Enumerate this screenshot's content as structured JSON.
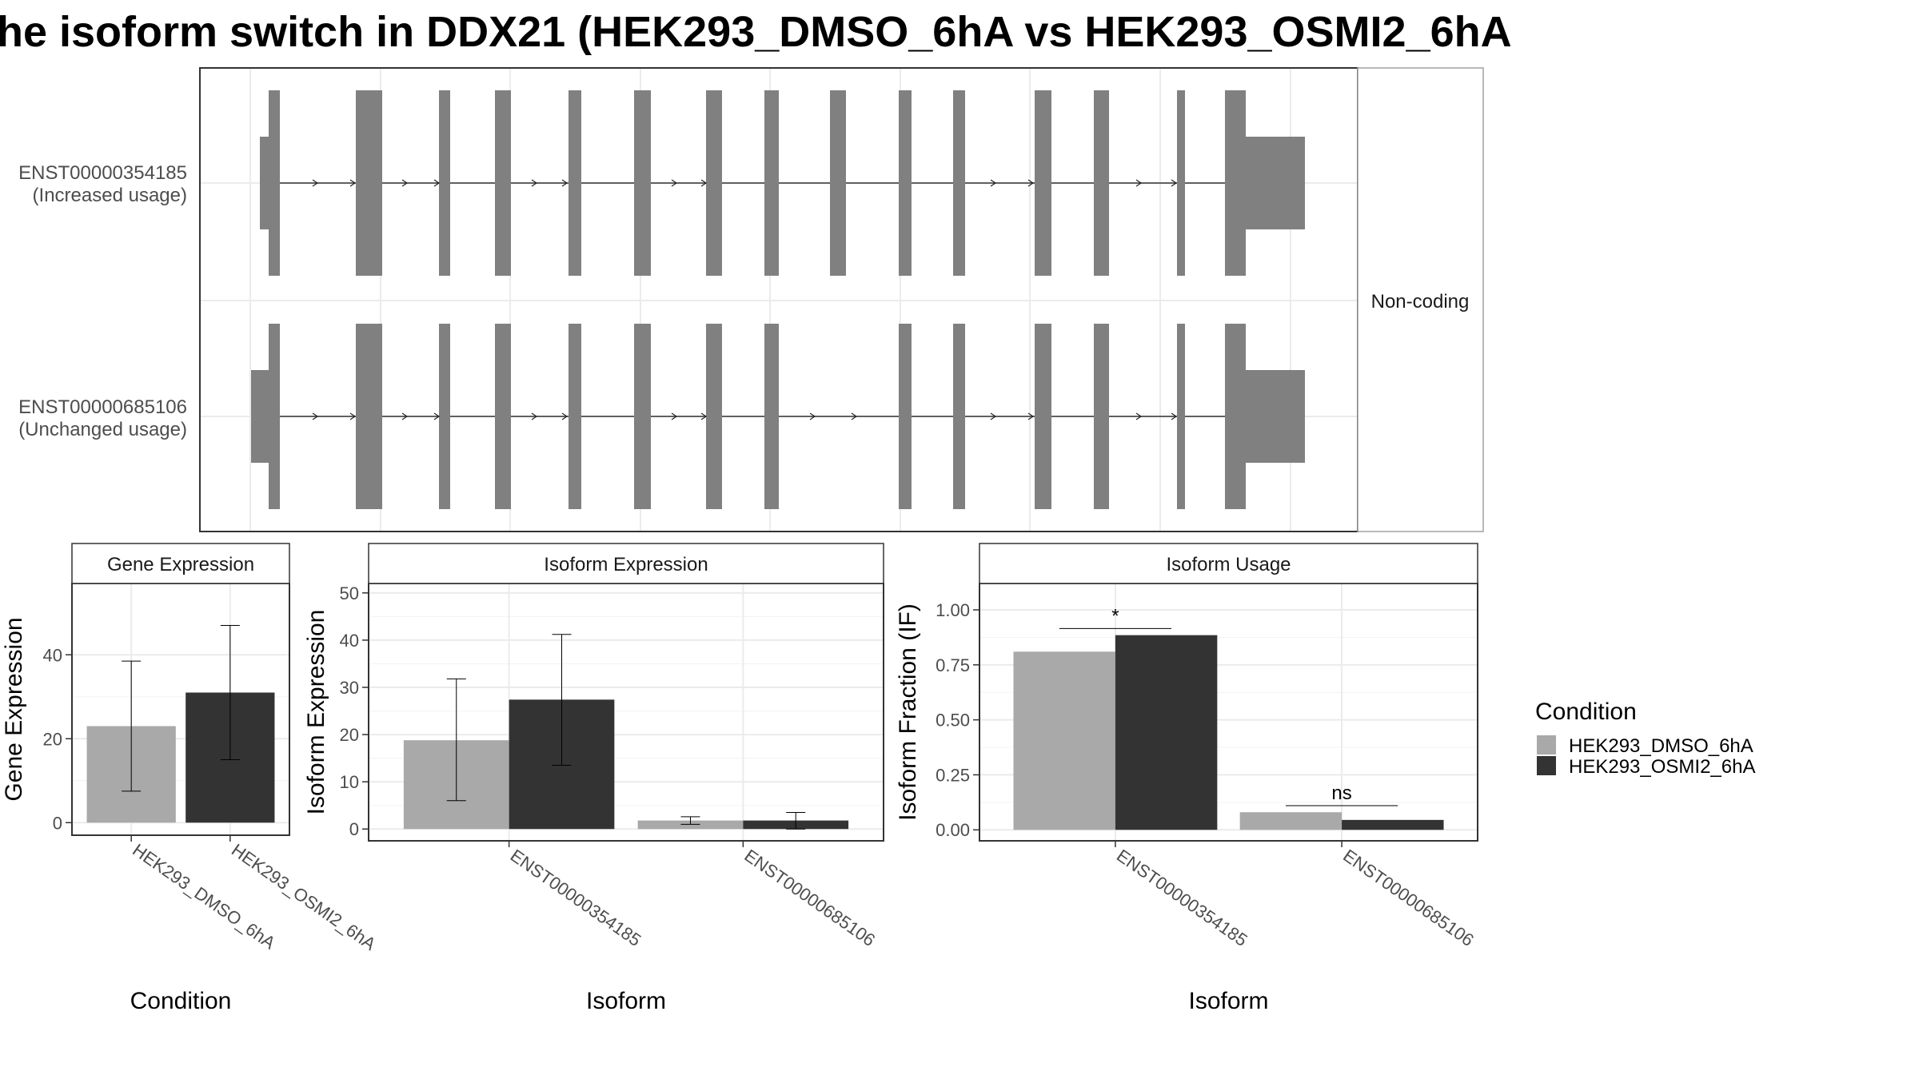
{
  "title": "he isoform switch in DDX21 (HEK293_DMSO_6hA vs HEK293_OSMI2_6hA",
  "colors": {
    "dmso": "#a9a9a9",
    "osmi2": "#333333",
    "exon": "#808080",
    "grid": "#ebebeb",
    "panel_border": "#333333",
    "strip_border": "#a0a0a0"
  },
  "structure": {
    "facet_label": "Non-coding",
    "transcripts": [
      {
        "id": "ENST00000354185",
        "note": "(Increased usage)"
      },
      {
        "id": "ENST00000685106",
        "note": "(Unchanged usage)"
      }
    ]
  },
  "legend": {
    "title": "Condition",
    "items": [
      {
        "label": "HEK293_DMSO_6hA",
        "color": "#a9a9a9"
      },
      {
        "label": "HEK293_OSMI2_6hA",
        "color": "#333333"
      }
    ]
  },
  "chart_data": [
    {
      "type": "bar",
      "panel": "Gene Expression",
      "categories": [
        "HEK293_DMSO_6hA",
        "HEK293_OSMI2_6hA"
      ],
      "values": [
        23.0,
        31.0
      ],
      "error_low": [
        7.5,
        15.0
      ],
      "error_high": [
        38.5,
        47.0
      ],
      "xlabel": "Condition",
      "ylabel": "Gene Expression",
      "ylim": [
        -3,
        57
      ],
      "yticks": [
        0,
        20,
        40
      ]
    },
    {
      "type": "bar",
      "panel": "Isoform Expression",
      "categories": [
        "ENST00000354185",
        "ENST00000685106"
      ],
      "series": [
        {
          "name": "HEK293_DMSO_6hA",
          "values": [
            18.8,
            1.8
          ],
          "error_low": [
            6.0,
            1.0
          ],
          "error_high": [
            31.8,
            2.6
          ]
        },
        {
          "name": "HEK293_OSMI2_6hA",
          "values": [
            27.4,
            1.8
          ],
          "error_low": [
            13.5,
            0.0
          ],
          "error_high": [
            41.2,
            3.5
          ]
        }
      ],
      "xlabel": "Isoform",
      "ylabel": "Isoform Expression",
      "ylim": [
        -2.5,
        52
      ],
      "yticks": [
        0,
        10,
        20,
        30,
        40,
        50
      ]
    },
    {
      "type": "bar",
      "panel": "Isoform Usage",
      "categories": [
        "ENST00000354185",
        "ENST00000685106"
      ],
      "series": [
        {
          "name": "HEK293_DMSO_6hA",
          "values": [
            0.81,
            0.08
          ]
        },
        {
          "name": "HEK293_OSMI2_6hA",
          "values": [
            0.885,
            0.045
          ]
        }
      ],
      "significance": [
        "*",
        "ns"
      ],
      "xlabel": "Isoform",
      "ylabel": "Isoform Fraction (IF)",
      "ylim": [
        -0.05,
        1.12
      ],
      "yticks": [
        0.0,
        0.25,
        0.5,
        0.75,
        1.0
      ],
      "ytick_labels": [
        "0.00",
        "0.25",
        "0.50",
        "0.75",
        "1.00"
      ]
    }
  ]
}
